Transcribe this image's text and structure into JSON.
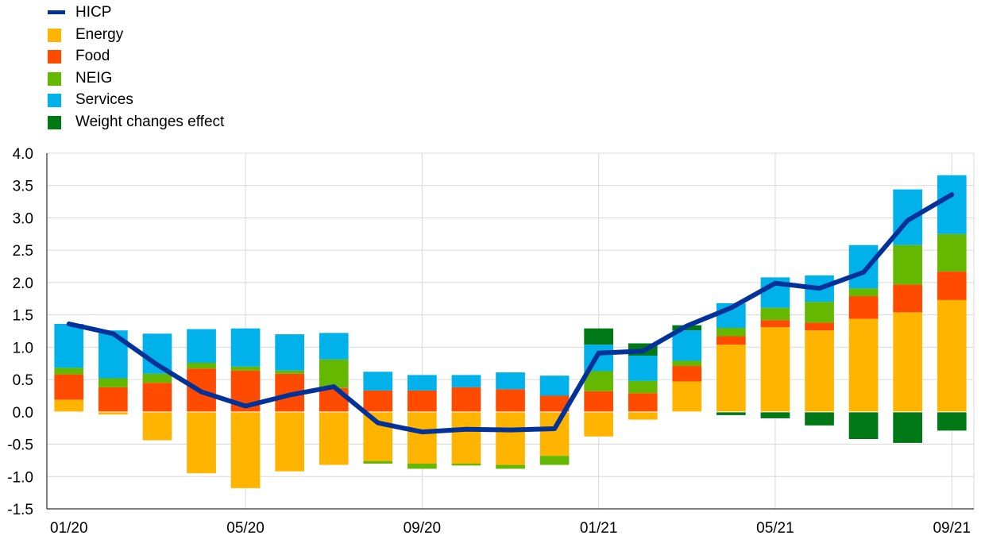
{
  "chart_data": {
    "type": "bar",
    "stacked": true,
    "title": "",
    "xlabel": "",
    "ylabel": "",
    "ylim": [
      -1.5,
      4.0
    ],
    "yticks": [
      -1.5,
      -1.0,
      -0.5,
      0.0,
      0.5,
      1.0,
      1.5,
      2.0,
      2.5,
      3.0,
      3.5,
      4.0
    ],
    "ytick_labels": [
      "-1.5",
      "-1.0",
      "-0.5",
      "0.0",
      "0.5",
      "1.0",
      "1.5",
      "2.0",
      "2.5",
      "3.0",
      "3.5",
      "4.0"
    ],
    "categories": [
      "01/20",
      "02/20",
      "03/20",
      "04/20",
      "05/20",
      "06/20",
      "07/20",
      "08/20",
      "09/20",
      "10/20",
      "11/20",
      "12/20",
      "01/21",
      "02/21",
      "03/21",
      "04/21",
      "05/21",
      "06/21",
      "07/21",
      "08/21",
      "09/21"
    ],
    "xtick_labels": [
      "01/20",
      "05/20",
      "09/20",
      "01/21",
      "05/21",
      "09/21"
    ],
    "grid": true,
    "legend_position": "top-left",
    "series": [
      {
        "name": "Energy",
        "color": "#FFB400",
        "values": [
          0.19,
          -0.04,
          -0.44,
          -0.95,
          -1.18,
          -0.92,
          -0.82,
          -0.76,
          -0.8,
          -0.8,
          -0.82,
          -0.68,
          -0.38,
          -0.12,
          0.47,
          1.04,
          1.31,
          1.26,
          1.44,
          1.54,
          1.73
        ]
      },
      {
        "name": "Food",
        "color": "#FF4B00",
        "values": [
          0.39,
          0.38,
          0.45,
          0.67,
          0.64,
          0.59,
          0.37,
          0.33,
          0.33,
          0.38,
          0.35,
          0.25,
          0.32,
          0.29,
          0.24,
          0.13,
          0.11,
          0.12,
          0.35,
          0.43,
          0.44
        ]
      },
      {
        "name": "NEIG",
        "color": "#65B800",
        "values": [
          0.1,
          0.14,
          0.14,
          0.09,
          0.06,
          0.05,
          0.44,
          -0.04,
          -0.08,
          -0.03,
          -0.06,
          -0.14,
          0.31,
          0.19,
          0.08,
          0.13,
          0.19,
          0.32,
          0.12,
          0.61,
          0.58
        ]
      },
      {
        "name": "Services",
        "color": "#00B1EA",
        "values": [
          0.68,
          0.74,
          0.62,
          0.52,
          0.59,
          0.56,
          0.41,
          0.29,
          0.24,
          0.19,
          0.26,
          0.31,
          0.41,
          0.39,
          0.47,
          0.38,
          0.47,
          0.41,
          0.67,
          0.86,
          0.91
        ]
      },
      {
        "name": "Weight changes effect",
        "color": "#007816",
        "values": [
          0,
          0,
          0,
          0,
          0,
          0,
          0,
          0,
          0,
          0,
          0,
          0,
          0.25,
          0.19,
          0.08,
          -0.05,
          -0.1,
          -0.21,
          -0.42,
          -0.48,
          -0.29
        ]
      },
      {
        "name": "HICP",
        "color": "#003299",
        "type": "line",
        "values": [
          1.36,
          1.21,
          0.73,
          0.31,
          0.09,
          0.26,
          0.39,
          -0.17,
          -0.31,
          -0.27,
          -0.28,
          -0.26,
          0.91,
          0.94,
          1.33,
          1.61,
          1.99,
          1.91,
          2.16,
          2.96,
          3.36
        ]
      }
    ]
  },
  "legend": {
    "items": [
      {
        "label": "HICP",
        "color": "#003299",
        "kind": "line"
      },
      {
        "label": "Energy",
        "color": "#FFB400",
        "kind": "box"
      },
      {
        "label": "Food",
        "color": "#FF4B00",
        "kind": "box"
      },
      {
        "label": "NEIG",
        "color": "#65B800",
        "kind": "box"
      },
      {
        "label": "Services",
        "color": "#00B1EA",
        "kind": "box"
      },
      {
        "label": "Weight changes effect",
        "color": "#007816",
        "kind": "box"
      }
    ]
  }
}
